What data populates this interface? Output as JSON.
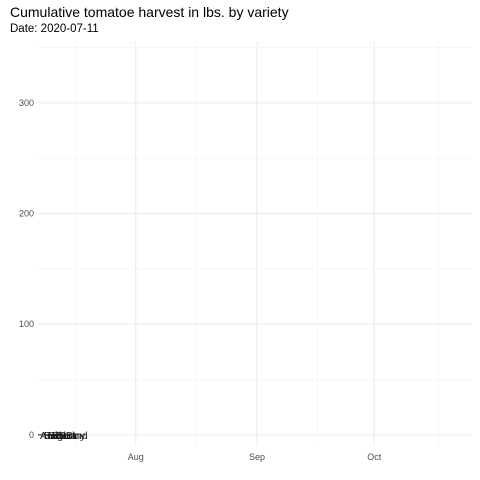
{
  "chart_data": {
    "type": "line",
    "title": "Cumulative tomatoe harvest in lbs. by variety",
    "subtitle": "Date: 2020-07-11",
    "xlabel": "",
    "ylabel": "",
    "x_range": [
      "2020-07-07",
      "2020-10-26"
    ],
    "ylim": [
      -10,
      355
    ],
    "x_ticks": [
      {
        "date": "2020-08-01",
        "label": "Aug"
      },
      {
        "date": "2020-09-01",
        "label": "Sep"
      },
      {
        "date": "2020-10-01",
        "label": "Oct"
      }
    ],
    "y_ticks": [
      0,
      100,
      200,
      300
    ],
    "grid": true,
    "legend": "none",
    "current_date": "2020-07-11",
    "series_end_labels": [
      {
        "date": "2020-07-07",
        "value": 0
      },
      {
        "date": "2020-07-08",
        "value": 0
      },
      {
        "date": "2020-07-09",
        "value": 0
      },
      {
        "date": "2020-07-10",
        "value": 0
      },
      {
        "date": "2020-07-11",
        "value": 0
      },
      {
        "date": "2020-07-12",
        "value": 0
      }
    ]
  }
}
